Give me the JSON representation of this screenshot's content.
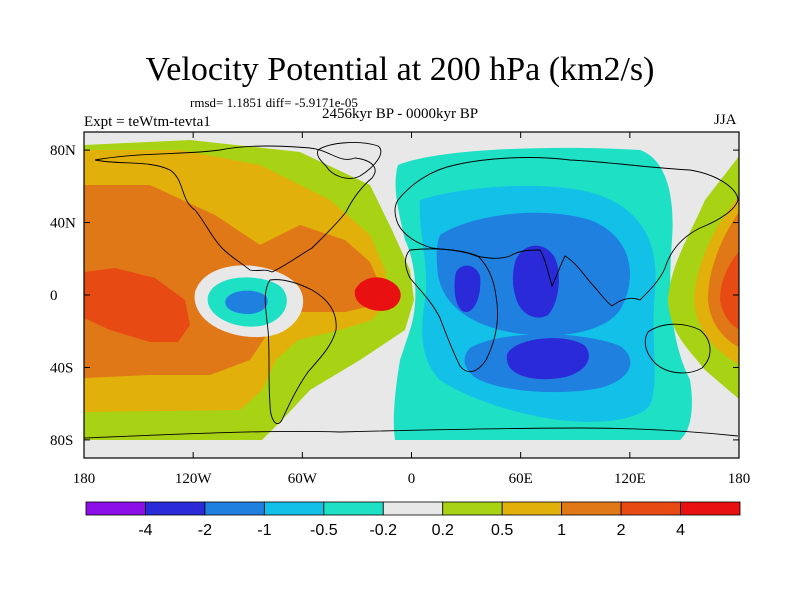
{
  "chart_data": {
    "type": "heatmap",
    "title": "Velocity Potential at 200 hPa (km2/s)",
    "subtitle_stats": "rmsd= 1.1851  diff= -5.9171e-05",
    "period": "2456kyr BP - 0000kyr BP",
    "experiment": "Expt = teWtm-tevta1",
    "season": "JJA",
    "x_axis": {
      "range": [
        -180,
        180
      ],
      "ticks": [
        "180",
        "120W",
        "60W",
        "0",
        "60E",
        "120E",
        "180"
      ]
    },
    "y_axis": {
      "range": [
        -90,
        90
      ],
      "ticks": [
        "80N",
        "40N",
        "0",
        "40S",
        "80S"
      ]
    },
    "colorbar": {
      "labels": [
        "-4",
        "-2",
        "-1",
        "-0.5",
        "-0.2",
        "0.2",
        "0.5",
        "1",
        "2",
        "4"
      ],
      "colors": [
        "#8d0fe8",
        "#2a2ad8",
        "#1f80e0",
        "#12c0e8",
        "#1de0c4",
        "#e8e8e8",
        "#a8d214",
        "#e2b00a",
        "#e07818",
        "#e84a14",
        "#e81010"
      ]
    },
    "regions": [
      {
        "name": "positive Pacific high",
        "center": [
          -150,
          5
        ],
        "value": 2
      },
      {
        "name": "positive Atlantic max",
        "center": [
          -20,
          2
        ],
        "value": 4
      },
      {
        "name": "negative Africa core",
        "center": [
          25,
          5
        ],
        "value": -2
      },
      {
        "name": "negative Indian Ocean core",
        "center": [
          58,
          12
        ],
        "value": -2
      },
      {
        "name": "negative south Indian core",
        "center": [
          62,
          -30
        ],
        "value": -2
      },
      {
        "name": "negative east Pacific cell",
        "center": [
          -95,
          -2
        ],
        "value": -1
      },
      {
        "name": "positive west Pacific",
        "center": [
          170,
          0
        ],
        "value": 2
      }
    ]
  }
}
